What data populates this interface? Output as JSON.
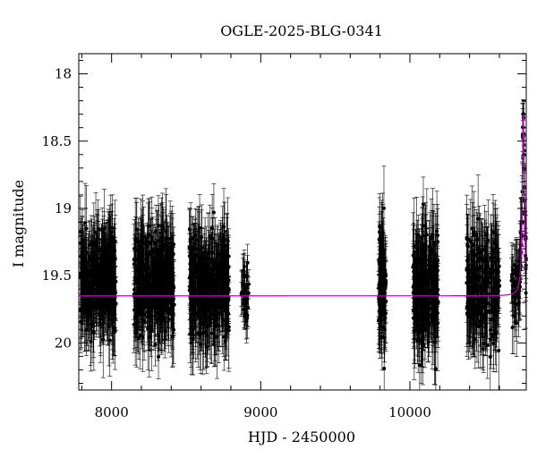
{
  "chart_data": {
    "type": "scatter",
    "title": "OGLE-2025-BLG-0341",
    "xlabel": "HJD - 2450000",
    "ylabel": "I magnitude",
    "xlim": [
      7780,
      10780
    ],
    "ylim": [
      20.35,
      17.85
    ],
    "y_inverted": true,
    "xticks": [
      8000,
      9000,
      10000
    ],
    "yticks": [
      18,
      18.5,
      19,
      19.5,
      20
    ],
    "ytick_labels": [
      "18",
      "18.5",
      "19",
      "19.5",
      "20"
    ],
    "grid": false,
    "colors": {
      "points": "#000000",
      "model": "#c000c0"
    },
    "baseline_magnitude": 19.65,
    "peak": {
      "hjd": 10760,
      "magnitude": 18.3
    },
    "observing_seasons": [
      {
        "start": 7790,
        "end": 8030,
        "mean_mag": 19.55,
        "scatter": 0.32,
        "error": 0.25,
        "count": 360
      },
      {
        "start": 8150,
        "end": 8420,
        "mean_mag": 19.55,
        "scatter": 0.34,
        "error": 0.25,
        "count": 380
      },
      {
        "start": 8520,
        "end": 8790,
        "mean_mag": 19.6,
        "scatter": 0.34,
        "error": 0.26,
        "count": 380
      },
      {
        "start": 8870,
        "end": 8920,
        "mean_mag": 19.65,
        "scatter": 0.2,
        "error": 0.15,
        "count": 40
      },
      {
        "start": 9790,
        "end": 9840,
        "mean_mag": 19.55,
        "scatter": 0.38,
        "error": 0.26,
        "count": 110
      },
      {
        "start": 10020,
        "end": 10190,
        "mean_mag": 19.6,
        "scatter": 0.36,
        "error": 0.28,
        "count": 240
      },
      {
        "start": 10380,
        "end": 10600,
        "mean_mag": 19.6,
        "scatter": 0.36,
        "error": 0.27,
        "count": 260
      },
      {
        "start": 10680,
        "end": 10780,
        "mean_mag": 19.6,
        "scatter": 0.3,
        "error": 0.22,
        "count": 90
      }
    ]
  }
}
